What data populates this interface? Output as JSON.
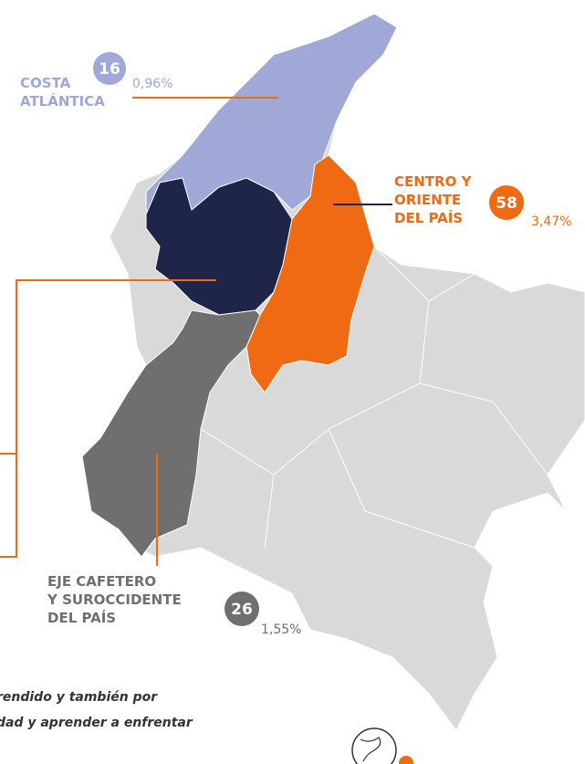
{
  "regions": [
    {
      "name_lines": [
        "COSTA",
        "ATLÁNTICA"
      ],
      "count": "16",
      "percent": "0,96%"
    },
    {
      "name_lines": [
        "CENTRO Y",
        "ORIENTE",
        "DEL PAÍS"
      ],
      "count": "58",
      "percent": "3,47%"
    },
    {
      "name_lines": [
        "EJE CAFETERO",
        "Y SUROCCIDENTE",
        "DEL PAÍS"
      ],
      "count": "26",
      "percent": "1,55%"
    }
  ],
  "footer_text": [
    "rendido y también por",
    "dad y aprender a enfrentar"
  ]
}
